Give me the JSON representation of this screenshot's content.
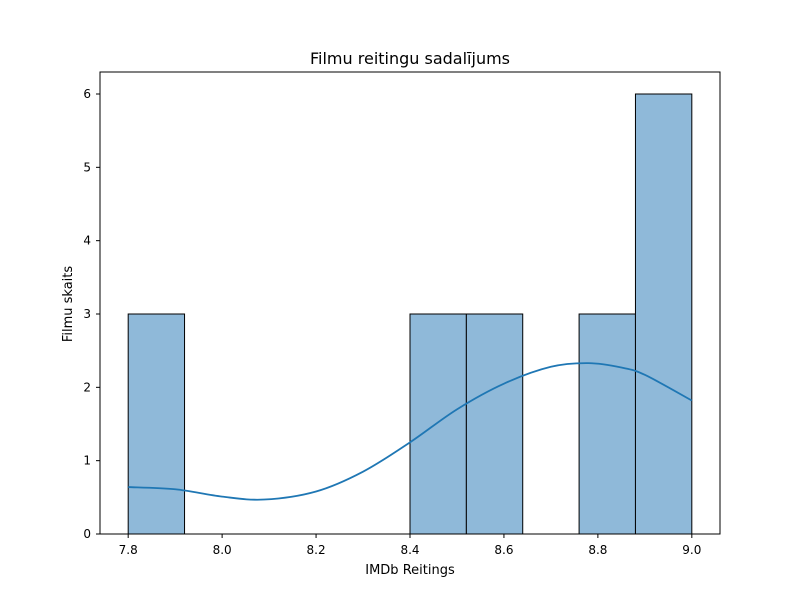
{
  "chart_data": {
    "type": "bar",
    "title": "Filmu reitingu sadalījums",
    "xlabel": "IMDb Reitings",
    "ylabel": "Filmu skaits",
    "xlim": [
      7.74,
      9.06
    ],
    "ylim": [
      0,
      6.3
    ],
    "xticks": [
      7.8,
      8.0,
      8.2,
      8.4,
      8.6,
      8.8,
      9.0
    ],
    "xtick_labels": [
      "7.8",
      "8.0",
      "8.2",
      "8.4",
      "8.6",
      "8.8",
      "9.0"
    ],
    "yticks": [
      0,
      1,
      2,
      3,
      4,
      5,
      6
    ],
    "ytick_labels": [
      "0",
      "1",
      "2",
      "3",
      "4",
      "5",
      "6"
    ],
    "bins": [
      {
        "x0": 7.8,
        "x1": 7.92,
        "count": 3
      },
      {
        "x0": 7.92,
        "x1": 8.04,
        "count": 0
      },
      {
        "x0": 8.04,
        "x1": 8.16,
        "count": 0
      },
      {
        "x0": 8.16,
        "x1": 8.28,
        "count": 0
      },
      {
        "x0": 8.28,
        "x1": 8.4,
        "count": 0
      },
      {
        "x0": 8.4,
        "x1": 8.52,
        "count": 3
      },
      {
        "x0": 8.52,
        "x1": 8.64,
        "count": 3
      },
      {
        "x0": 8.64,
        "x1": 8.76,
        "count": 0
      },
      {
        "x0": 8.76,
        "x1": 8.88,
        "count": 3
      },
      {
        "x0": 8.88,
        "x1": 9.0,
        "count": 6
      }
    ],
    "kde": {
      "x": [
        7.8,
        7.9,
        8.0,
        8.09,
        8.2,
        8.3,
        8.4,
        8.5,
        8.6,
        8.7,
        8.78,
        8.85,
        8.9,
        9.0
      ],
      "y": [
        0.64,
        0.61,
        0.51,
        0.47,
        0.58,
        0.85,
        1.25,
        1.7,
        2.05,
        2.28,
        2.33,
        2.27,
        2.17,
        1.82
      ]
    },
    "grid": false,
    "colors": {
      "bar_fill": "#8fb9d9",
      "bar_edge": "#000000",
      "kde_line": "#1f77b4"
    }
  }
}
